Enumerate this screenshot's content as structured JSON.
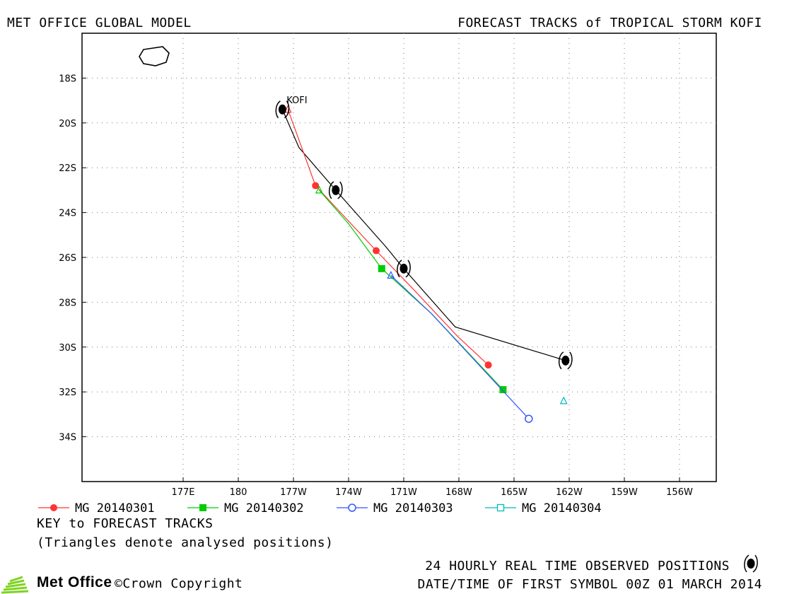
{
  "header": {
    "left_title": "MET OFFICE GLOBAL MODEL",
    "right_title": "FORECAST TRACKS of TROPICAL STORM KOFI"
  },
  "chart_data": {
    "type": "map",
    "storm_label": "KOFI",
    "lat_ticks": [
      "18S",
      "20S",
      "22S",
      "24S",
      "26S",
      "28S",
      "30S",
      "32S",
      "34S"
    ],
    "lon_ticks": [
      "177E",
      "180",
      "177W",
      "174W",
      "171W",
      "168W",
      "165W",
      "162W",
      "159W",
      "156W"
    ],
    "lat_values": [
      -18,
      -20,
      -22,
      -24,
      -26,
      -28,
      -30,
      -32,
      -34
    ],
    "lon_values": [
      177,
      180,
      183,
      186,
      189,
      192,
      195,
      198,
      201,
      204
    ],
    "xlim": [
      171.5,
      206.0
    ],
    "ylim": [
      -36.0,
      -16.0
    ],
    "grid": true,
    "observed_track": {
      "name": "24 HOURLY REAL TIME OBSERVED POSITIONS",
      "color": "#000000",
      "points": [
        [
          182.4,
          -19.4
        ],
        [
          183.3,
          -21.1
        ],
        [
          185.3,
          -23.0
        ],
        [
          188.0,
          -25.5
        ],
        [
          189.0,
          -26.5
        ],
        [
          191.8,
          -29.1
        ],
        [
          197.8,
          -30.6
        ]
      ],
      "symbols": [
        [
          182.4,
          -19.4
        ],
        [
          185.3,
          -23.0
        ],
        [
          189.0,
          -26.5
        ],
        [
          197.8,
          -30.6
        ]
      ]
    },
    "series": [
      {
        "name": "MG 20140301",
        "color": "#ff3333",
        "marker": "circle-filled",
        "line": [
          [
            182.7,
            -19.4
          ],
          [
            184.2,
            -22.8
          ],
          [
            187.5,
            -25.7
          ],
          [
            189.5,
            -27.4
          ],
          [
            191.9,
            -29.5
          ],
          [
            193.6,
            -30.8
          ]
        ],
        "markers": [
          [
            184.2,
            -22.8
          ],
          [
            187.5,
            -25.7
          ],
          [
            193.6,
            -30.8
          ]
        ],
        "analysed": [
          182.7,
          -19.4
        ]
      },
      {
        "name": "MG 20140302",
        "color": "#00cc00",
        "marker": "square-filled",
        "line": [
          [
            184.4,
            -23.0
          ],
          [
            186.0,
            -24.5
          ],
          [
            187.8,
            -26.5
          ],
          [
            190.5,
            -28.5
          ],
          [
            194.4,
            -31.9
          ]
        ],
        "markers": [
          [
            187.8,
            -26.5
          ],
          [
            194.4,
            -31.9
          ]
        ],
        "analysed": [
          184.4,
          -23.0
        ]
      },
      {
        "name": "MG 20140303",
        "color": "#3355ff",
        "marker": "circle-open",
        "line": [
          [
            188.3,
            -26.8
          ],
          [
            190.5,
            -28.5
          ],
          [
            195.8,
            -33.2
          ]
        ],
        "markers": [
          [
            195.8,
            -33.2
          ]
        ],
        "analysed": [
          188.3,
          -26.8
        ]
      },
      {
        "name": "MG 20140304",
        "color": "#00bbbb",
        "marker": "square-open",
        "line": [],
        "markers": [],
        "analysed": [
          197.7,
          -32.4
        ]
      }
    ]
  },
  "legend": {
    "key_title": "KEY to FORECAST TRACKS",
    "note": "(Triangles denote analysed positions)"
  },
  "footer": {
    "observed_label": "24 HOURLY REAL TIME OBSERVED POSITIONS",
    "datetime_label": "DATE/TIME OF FIRST SYMBOL 00Z 01 MARCH 2014",
    "logo_text": "Met Office",
    "copyright_text": "Crown Copyright"
  }
}
